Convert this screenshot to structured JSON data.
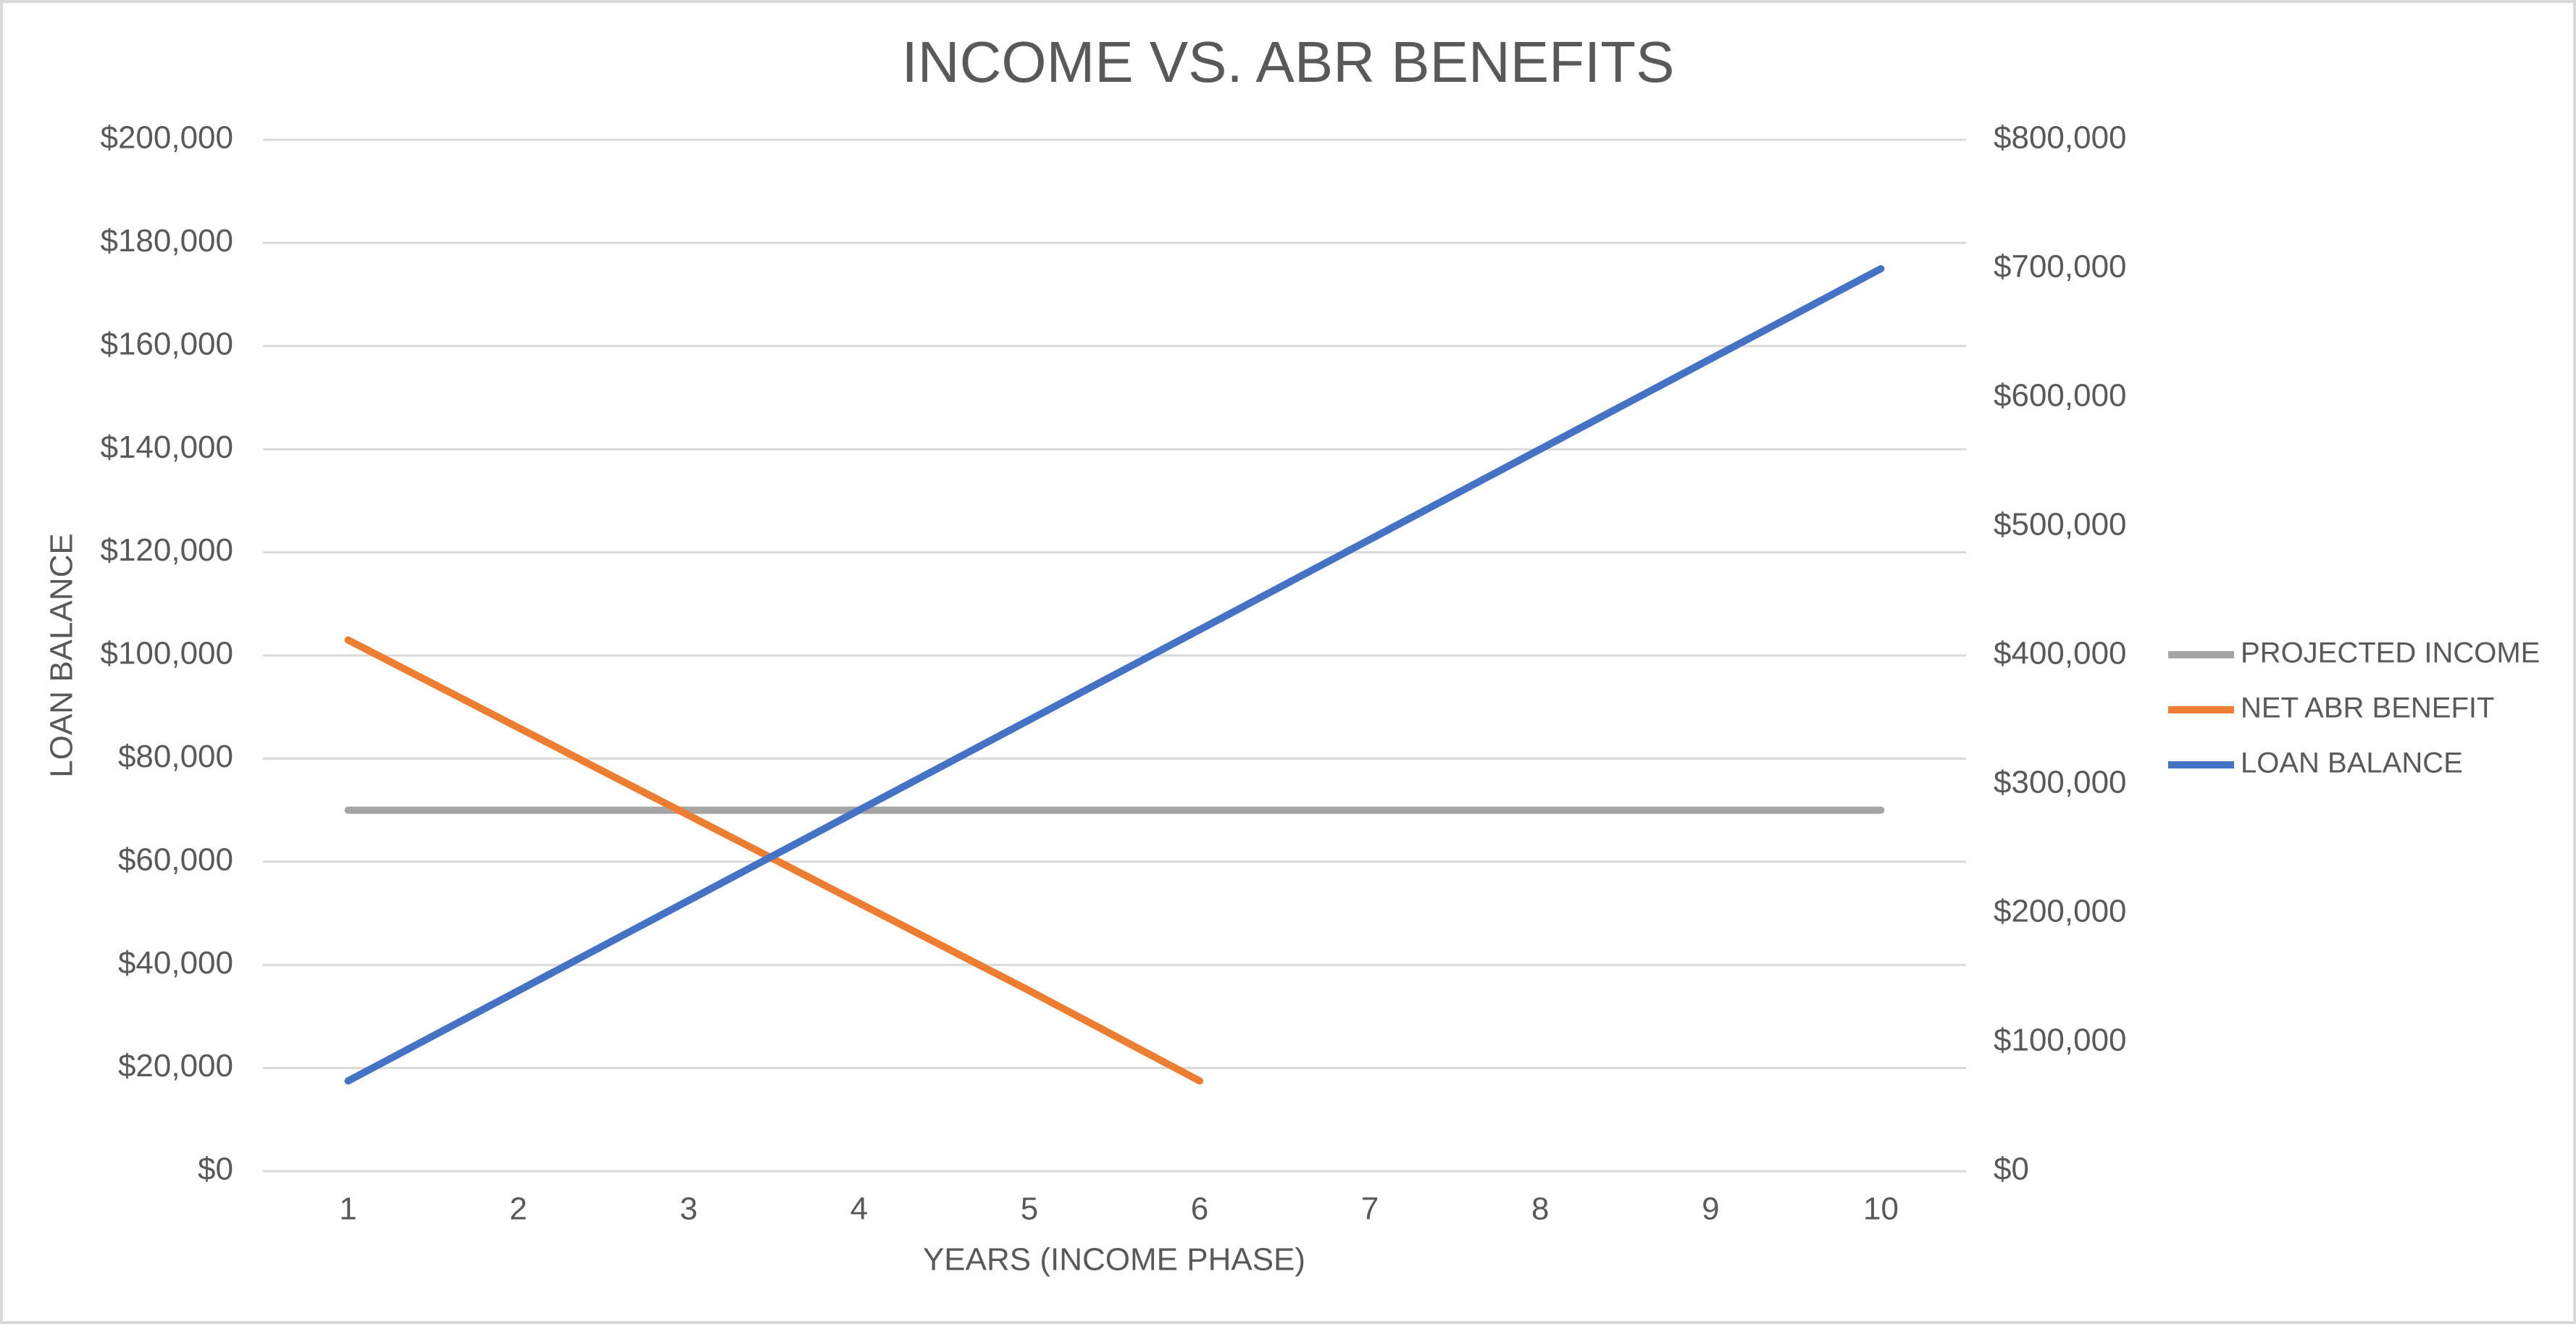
{
  "chart_data": {
    "type": "line",
    "title": "INCOME VS. ABR BENEFITS",
    "x_label": "YEARS (INCOME PHASE)",
    "y_label": "LOAN BALANCE",
    "categories": [
      "1",
      "2",
      "3",
      "4",
      "5",
      "6",
      "7",
      "8",
      "9",
      "10"
    ],
    "series": [
      {
        "name": "PROJECTED INCOME",
        "color": "#a5a5a5",
        "values": [
          70000,
          70000,
          70000,
          70000,
          70000,
          70000,
          70000,
          70000,
          70000,
          70000
        ]
      },
      {
        "name": "NET ABR BENEFIT",
        "color": "#ed7d31",
        "values": [
          103000,
          86000,
          69000,
          52000,
          35000,
          17500,
          null,
          null,
          null,
          null
        ]
      },
      {
        "name": "LOAN BALANCE",
        "color": "#4472c4",
        "axis": "y2",
        "values": [
          70000,
          140000,
          210000,
          280000,
          350000,
          420000,
          490000,
          560000,
          630000,
          700000
        ]
      }
    ],
    "ylim": [
      0,
      200000
    ],
    "yticks": [
      {
        "value": 0,
        "label": "$0"
      },
      {
        "value": 20000,
        "label": "$20,000"
      },
      {
        "value": 40000,
        "label": "$40,000"
      },
      {
        "value": 60000,
        "label": "$60,000"
      },
      {
        "value": 80000,
        "label": "$80,000"
      },
      {
        "value": 100000,
        "label": "$100,000"
      },
      {
        "value": 120000,
        "label": "$120,000"
      },
      {
        "value": 140000,
        "label": "$140,000"
      },
      {
        "value": 160000,
        "label": "$160,000"
      },
      {
        "value": 180000,
        "label": "$180,000"
      },
      {
        "value": 200000,
        "label": "$200,000"
      }
    ],
    "y2lim": [
      0,
      800000
    ],
    "y2ticks": [
      {
        "value": 0,
        "label": "$0"
      },
      {
        "value": 100000,
        "label": "$100,000"
      },
      {
        "value": 200000,
        "label": "$200,000"
      },
      {
        "value": 300000,
        "label": "$300,000"
      },
      {
        "value": 400000,
        "label": "$400,000"
      },
      {
        "value": 500000,
        "label": "$500,000"
      },
      {
        "value": 600000,
        "label": "$600,000"
      },
      {
        "value": 700000,
        "label": "$700,000"
      },
      {
        "value": 800000,
        "label": "$800,000"
      }
    ],
    "grid": true,
    "legend": "right"
  }
}
